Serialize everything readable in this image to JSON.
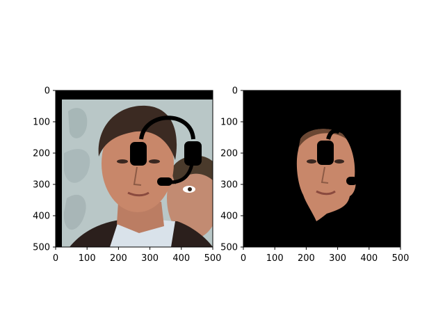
{
  "figure": {
    "background": "#ffffff",
    "panels": [
      {
        "name": "left-image-panel",
        "x_ticks": [
          "0",
          "100",
          "200",
          "300",
          "400",
          "500"
        ],
        "y_ticks": [
          "0",
          "100",
          "200",
          "300",
          "400",
          "500"
        ],
        "image": {
          "content": "face photo with black headset overlay",
          "icon": "headset-icon"
        }
      },
      {
        "name": "right-mask-panel",
        "x_ticks": [
          "0",
          "100",
          "200",
          "300",
          "400",
          "500"
        ],
        "y_ticks": [
          "0",
          "100",
          "200",
          "300",
          "400",
          "500"
        ],
        "image": {
          "content": "face region segmented on black background",
          "icon": "face-mask-icon"
        }
      }
    ]
  },
  "colors": {
    "mask_background": "#000000",
    "skin": "#c8876a",
    "hair": "#3b2a22",
    "bg_photo": "#b9c7c7",
    "shirt": "#d9e2ea",
    "jacket": "#2b1f1c"
  }
}
